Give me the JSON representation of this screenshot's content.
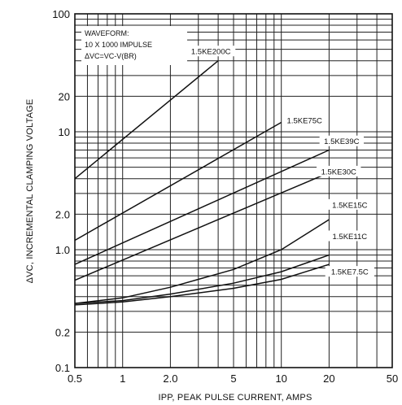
{
  "chart_data": {
    "type": "line",
    "title": "",
    "xlabel": "IPP, PEAK PULSE CURRENT, AMPS",
    "ylabel": "ΔVC, INCREMENTAL CLAMPING VOLTAGE",
    "x_scale": "log",
    "y_scale": "log",
    "xlim": [
      0.5,
      50
    ],
    "ylim": [
      0.1,
      100
    ],
    "x_ticks": [
      {
        "value": 0.5,
        "label": "0.5"
      },
      {
        "value": 1,
        "label": "1"
      },
      {
        "value": 2,
        "label": "2.0"
      },
      {
        "value": 5,
        "label": "5"
      },
      {
        "value": 10,
        "label": "10"
      },
      {
        "value": 20,
        "label": "20"
      },
      {
        "value": 50,
        "label": "50"
      }
    ],
    "y_ticks": [
      {
        "value": 0.1,
        "label": "0.1"
      },
      {
        "value": 0.2,
        "label": "0.2"
      },
      {
        "value": 0.5,
        "label": ""
      },
      {
        "value": 1,
        "label": "1.0"
      },
      {
        "value": 2,
        "label": "2.0"
      },
      {
        "value": 5,
        "label": ""
      },
      {
        "value": 10,
        "label": "10"
      },
      {
        "value": 20,
        "label": "20"
      },
      {
        "value": 100,
        "label": "100"
      }
    ],
    "grid": true,
    "annotation": {
      "lines": [
        "WAVEFORM:",
        "10 X 1000 IMPULSE",
        "ΔVC=VC-V(BR)"
      ]
    },
    "series": [
      {
        "name": "1.5KE200C",
        "label_at": {
          "x": 3.6,
          "y": 48
        },
        "x": [
          0.5,
          4.0
        ],
        "y": [
          4.0,
          40.0
        ]
      },
      {
        "name": "1.5KE75C",
        "label_at": {
          "x": 14,
          "y": 12.5
        },
        "x": [
          0.5,
          10.0
        ],
        "y": [
          1.2,
          12.0
        ]
      },
      {
        "name": "1.5KE39C",
        "label_at": {
          "x": 24,
          "y": 8.3
        },
        "x": [
          0.5,
          20.0
        ],
        "y": [
          0.75,
          7.0
        ]
      },
      {
        "name": "1.5KE30C",
        "label_at": {
          "x": 23,
          "y": 4.6
        },
        "x": [
          0.5,
          20.0
        ],
        "y": [
          0.55,
          4.5
        ]
      },
      {
        "name": "1.5KE15C",
        "label_at": {
          "x": 27,
          "y": 2.4
        },
        "x": [
          0.5,
          1,
          2,
          5,
          10,
          20
        ],
        "y": [
          0.35,
          0.39,
          0.48,
          0.68,
          1.0,
          1.8
        ]
      },
      {
        "name": "1.5KE11C",
        "label_at": {
          "x": 27,
          "y": 1.3
        },
        "x": [
          0.5,
          1,
          2,
          5,
          10,
          20
        ],
        "y": [
          0.35,
          0.37,
          0.42,
          0.52,
          0.65,
          0.9
        ]
      },
      {
        "name": "1.5KE7.5C",
        "label_at": {
          "x": 27,
          "y": 0.65
        },
        "x": [
          0.5,
          1,
          2,
          5,
          10,
          20
        ],
        "y": [
          0.34,
          0.36,
          0.4,
          0.47,
          0.56,
          0.75
        ]
      }
    ]
  }
}
